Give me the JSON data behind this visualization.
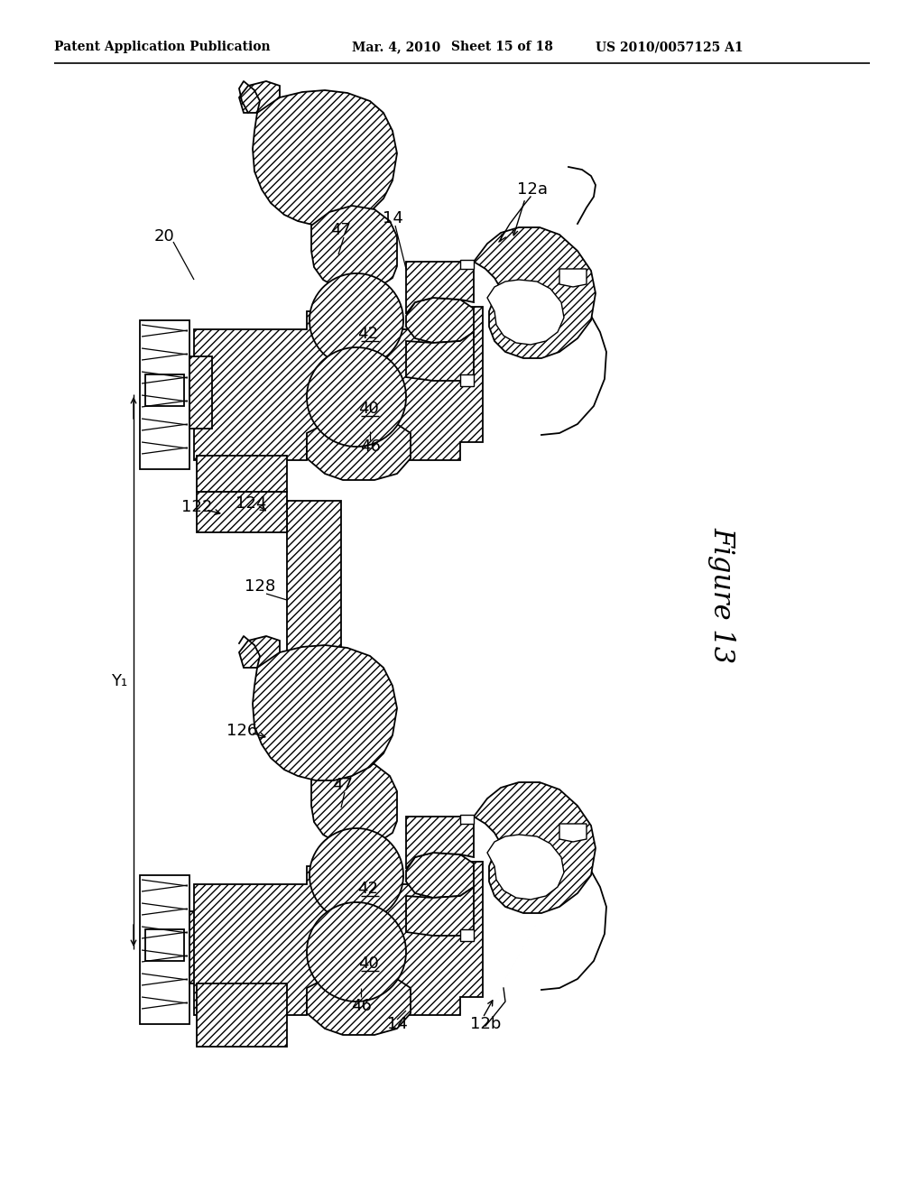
{
  "bg": "#ffffff",
  "lc": "#000000",
  "fig_width": 10.24,
  "fig_height": 13.2,
  "dpi": 100,
  "header": {
    "left": "Patent Application Publication",
    "mid1": "Mar. 4, 2010",
    "mid2": "Sheet 15 of 18",
    "right": "US 2010/0057125 A1"
  },
  "figure_label": "Figure 13"
}
